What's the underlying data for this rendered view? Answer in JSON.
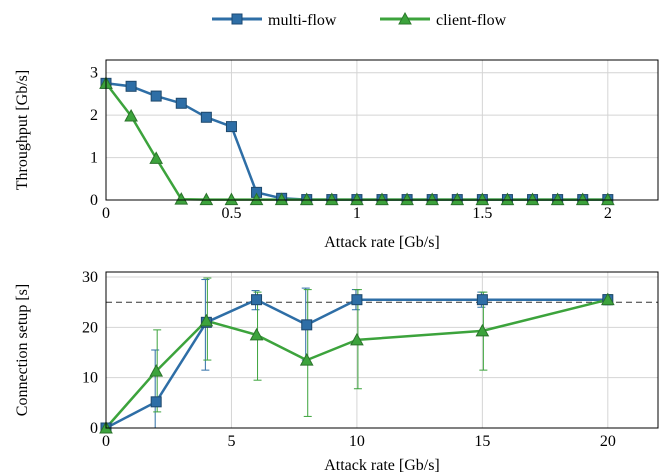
{
  "colors": {
    "multi_flow": "#2e6ea6",
    "client_flow": "#3ca33c",
    "grid": "#d4d4d4",
    "reference_line": "#333333"
  },
  "legend": {
    "items": [
      {
        "label": "multi-flow",
        "marker": "square",
        "color": "#2e6ea6"
      },
      {
        "label": "client-flow",
        "marker": "triangle",
        "color": "#3ca33c"
      }
    ],
    "placement": "top-center"
  },
  "chart_data": [
    {
      "type": "line",
      "xlabel": "Attack rate [Gb/s]",
      "ylabel": "Throughput [Gb/s]",
      "xlim": [
        0,
        2.2
      ],
      "ylim": [
        0,
        3.3
      ],
      "xticks": [
        0,
        0.5,
        1,
        1.5,
        2
      ],
      "xtick_labels": [
        "0",
        "0.5",
        "1",
        "1.5",
        "2"
      ],
      "yticks": [
        0,
        1,
        2,
        3
      ],
      "ytick_labels": [
        "0",
        "1",
        "2",
        "3"
      ],
      "grid": true,
      "x": [
        0,
        0.1,
        0.2,
        0.3,
        0.4,
        0.5,
        0.6,
        0.7,
        0.8,
        0.9,
        1.0,
        1.1,
        1.2,
        1.3,
        1.4,
        1.5,
        1.6,
        1.7,
        1.8,
        1.9,
        2.0
      ],
      "series": [
        {
          "name": "multi-flow",
          "marker": "square",
          "color": "#2e6ea6",
          "values": [
            2.75,
            2.68,
            2.45,
            2.28,
            1.95,
            1.73,
            0.18,
            0.04,
            0.01,
            0.01,
            0.01,
            0.01,
            0.01,
            0.01,
            0.01,
            0.01,
            0.01,
            0.01,
            0.01,
            0.01,
            0.01
          ]
        },
        {
          "name": "client-flow",
          "marker": "triangle",
          "color": "#3ca33c",
          "values": [
            2.75,
            1.98,
            0.98,
            0.02,
            0.01,
            0.01,
            0.01,
            0.01,
            0.01,
            0.01,
            0.01,
            0.01,
            0.01,
            0.01,
            0.01,
            0.01,
            0.01,
            0.01,
            0.01,
            0.01,
            0.01
          ]
        }
      ]
    },
    {
      "type": "line",
      "xlabel": "Attack rate [Gb/s]",
      "ylabel": "Connection setup [s]",
      "xlim": [
        0,
        22
      ],
      "ylim": [
        0,
        31
      ],
      "xticks": [
        0,
        5,
        10,
        15,
        20
      ],
      "xtick_labels": [
        "0",
        "5",
        "10",
        "15",
        "20"
      ],
      "yticks": [
        0,
        10,
        20,
        30
      ],
      "ytick_labels": [
        "0",
        "10",
        "20",
        "30"
      ],
      "grid": true,
      "reference_line": {
        "y": 25,
        "style": "dashed"
      },
      "series": [
        {
          "name": "multi-flow",
          "marker": "square",
          "color": "#2e6ea6",
          "x": [
            0,
            2,
            4,
            6,
            8,
            10,
            15,
            20
          ],
          "values": [
            0,
            5.2,
            21.0,
            25.5,
            20.5,
            25.5,
            25.5,
            25.5
          ],
          "error_low": [
            0,
            0,
            11.5,
            23.5,
            13.5,
            23.5,
            24.0,
            24.5
          ],
          "error_high": [
            0,
            15.5,
            29.5,
            27.3,
            27.8,
            27.5,
            27.0,
            26.5
          ]
        },
        {
          "name": "client-flow",
          "marker": "triangle",
          "color": "#3ca33c",
          "x": [
            0,
            2,
            4,
            6,
            8,
            10,
            15,
            20
          ],
          "values": [
            0,
            11.3,
            21.3,
            18.5,
            13.5,
            17.5,
            19.3,
            25.5
          ],
          "error_low": [
            0,
            3.2,
            13.5,
            9.5,
            2.3,
            7.8,
            11.5,
            24.5
          ],
          "error_high": [
            0,
            19.5,
            29.8,
            27.0,
            27.5,
            27.5,
            27.0,
            26.5
          ]
        }
      ]
    }
  ]
}
